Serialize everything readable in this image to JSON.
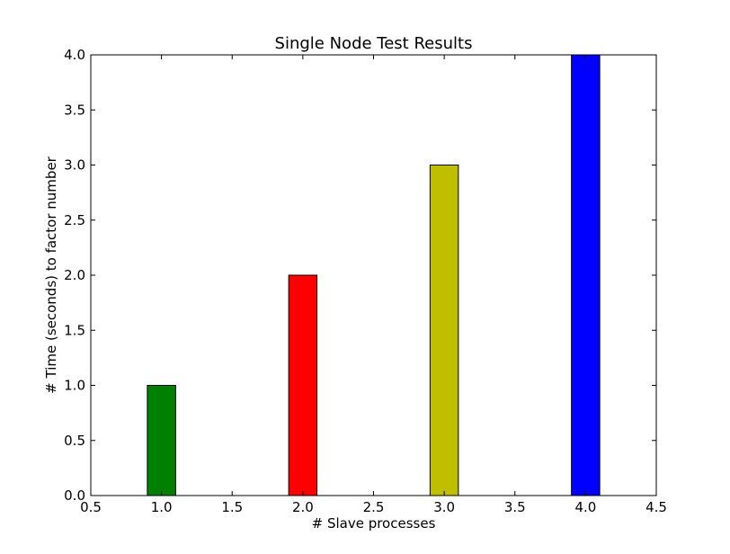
{
  "chart_data": {
    "type": "bar",
    "title": "Single Node Test Results",
    "xlabel": "# Slave processes",
    "ylabel": "# Time (seconds) to factor number",
    "xlim": [
      0.5,
      4.5
    ],
    "ylim": [
      0,
      4.0
    ],
    "xticks": [
      0.5,
      1.0,
      1.5,
      2.0,
      2.5,
      3.0,
      3.5,
      4.0,
      4.5
    ],
    "xtick_labels": [
      "0.5",
      "1.0",
      "1.5",
      "2.0",
      "2.5",
      "3.0",
      "3.5",
      "4.0",
      "4.5"
    ],
    "yticks": [
      0.0,
      0.5,
      1.0,
      1.5,
      2.0,
      2.5,
      3.0,
      3.5,
      4.0
    ],
    "ytick_labels": [
      "0.0",
      "0.5",
      "1.0",
      "1.5",
      "2.0",
      "2.5",
      "3.0",
      "3.5",
      "4.0"
    ],
    "bar_width": 0.2,
    "grid": false,
    "bars": [
      {
        "x": 1.0,
        "value": 1.0,
        "color": "#008000"
      },
      {
        "x": 2.0,
        "value": 2.0,
        "color": "#ff0000"
      },
      {
        "x": 3.0,
        "value": 3.0,
        "color": "#bfbf00"
      },
      {
        "x": 4.0,
        "value": 4.0,
        "color": "#0000ff"
      }
    ]
  }
}
